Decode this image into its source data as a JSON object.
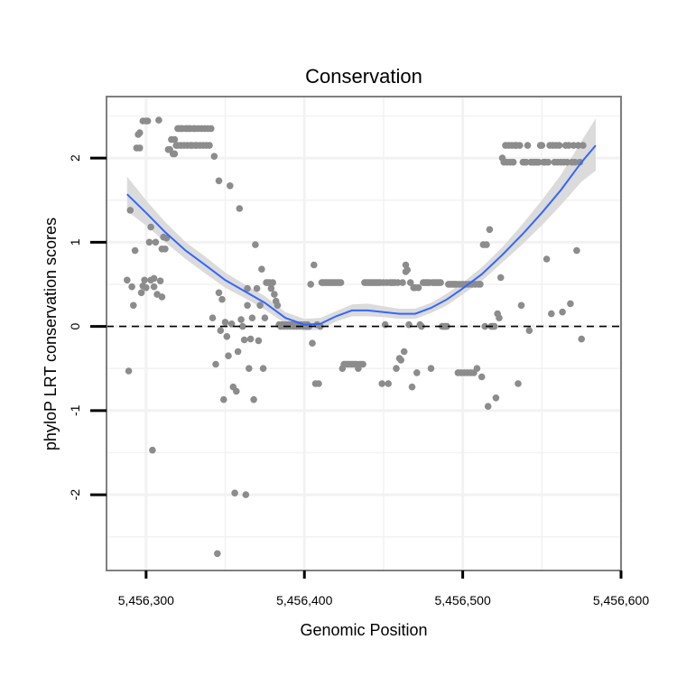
{
  "chart_data": {
    "type": "scatter",
    "title": "Conservation",
    "xlabel": "Genomic Position",
    "ylabel": "phyloP LRT conservation scores",
    "xlim": [
      5456275,
      5456600
    ],
    "ylim": [
      -2.9,
      2.73
    ],
    "x_ticks": [
      {
        "value": 5456300,
        "label": "5,456,300"
      },
      {
        "value": 5456400,
        "label": "5,456,400"
      },
      {
        "value": 5456500,
        "label": "5,456,500"
      },
      {
        "value": 5456600,
        "label": "5,456,600"
      }
    ],
    "y_ticks": [
      {
        "value": 2,
        "label": "2"
      },
      {
        "value": 1,
        "label": "1"
      },
      {
        "value": 0,
        "label": "0"
      },
      {
        "value": -1,
        "label": "-1"
      },
      {
        "value": -2,
        "label": "-2"
      }
    ],
    "reference_line": {
      "y": 0,
      "style": "dashed"
    },
    "colors": {
      "points": "#8c8c8c",
      "smooth": "#3366ff",
      "ribbon": "#d9d9d9",
      "grid": "#f2f2f2",
      "border": "#7f7f7f"
    },
    "points": [
      [
        5456288,
        0.55
      ],
      [
        5456289,
        -0.53
      ],
      [
        5456290,
        1.38
      ],
      [
        5456291,
        0.47
      ],
      [
        5456292,
        0.25
      ],
      [
        5456293,
        0.9
      ],
      [
        5456294,
        2.12
      ],
      [
        5456295,
        2.28
      ],
      [
        5456296,
        2.12
      ],
      [
        5456296,
        2.3
      ],
      [
        5456297,
        0.4
      ],
      [
        5456298,
        2.44
      ],
      [
        5456298,
        0.48
      ],
      [
        5456299,
        0.55
      ],
      [
        5456300,
        2.44
      ],
      [
        5456300,
        0.46
      ],
      [
        5456301,
        2.44
      ],
      [
        5456302,
        1.0
      ],
      [
        5456303,
        0.55
      ],
      [
        5456303,
        1.18
      ],
      [
        5456304,
        -1.47
      ],
      [
        5456305,
        0.47
      ],
      [
        5456305,
        0.57
      ],
      [
        5456306,
        1.0
      ],
      [
        5456307,
        0.38
      ],
      [
        5456308,
        2.45
      ],
      [
        5456309,
        0.54
      ],
      [
        5456310,
        0.92
      ],
      [
        5456310,
        0.35
      ],
      [
        5456311,
        1.06
      ],
      [
        5456312,
        0.92
      ],
      [
        5456313,
        1.05
      ],
      [
        5456314,
        2.1
      ],
      [
        5456315,
        2.1
      ],
      [
        5456316,
        2.22
      ],
      [
        5456317,
        2.05
      ],
      [
        5456318,
        2.22
      ],
      [
        5456318,
        2.05
      ],
      [
        5456319,
        2.15
      ],
      [
        5456320,
        2.15
      ],
      [
        5456320,
        2.35
      ],
      [
        5456321,
        2.35
      ],
      [
        5456322,
        2.35
      ],
      [
        5456322,
        2.15
      ],
      [
        5456323,
        2.35
      ],
      [
        5456324,
        2.15
      ],
      [
        5456325,
        2.35
      ],
      [
        5456326,
        2.35
      ],
      [
        5456326,
        2.15
      ],
      [
        5456327,
        2.35
      ],
      [
        5456328,
        2.35
      ],
      [
        5456328,
        2.15
      ],
      [
        5456329,
        2.15
      ],
      [
        5456330,
        2.35
      ],
      [
        5456331,
        2.35
      ],
      [
        5456331,
        2.15
      ],
      [
        5456332,
        2.15
      ],
      [
        5456333,
        2.35
      ],
      [
        5456334,
        2.15
      ],
      [
        5456335,
        2.35
      ],
      [
        5456336,
        2.15
      ],
      [
        5456337,
        2.35
      ],
      [
        5456338,
        2.15
      ],
      [
        5456339,
        2.35
      ],
      [
        5456340,
        2.15
      ],
      [
        5456341,
        2.35
      ],
      [
        5456342,
        0.1
      ],
      [
        5456343,
        2.02
      ],
      [
        5456344,
        -0.45
      ],
      [
        5456345,
        -2.7
      ],
      [
        5456346,
        0.4
      ],
      [
        5456346,
        1.73
      ],
      [
        5456347,
        -0.05
      ],
      [
        5456348,
        0.32
      ],
      [
        5456349,
        -0.87
      ],
      [
        5456350,
        0.05
      ],
      [
        5456351,
        -0.12
      ],
      [
        5456352,
        -0.35
      ],
      [
        5456353,
        1.67
      ],
      [
        5456354,
        0.03
      ],
      [
        5456355,
        -0.72
      ],
      [
        5456356,
        -1.98
      ],
      [
        5456357,
        -0.77
      ],
      [
        5456358,
        -0.3
      ],
      [
        5456359,
        1.4
      ],
      [
        5456360,
        0.08
      ],
      [
        5456361,
        0.0
      ],
      [
        5456362,
        -0.16
      ],
      [
        5456363,
        -2.0
      ],
      [
        5456364,
        0.25
      ],
      [
        5456364,
        0.45
      ],
      [
        5456365,
        -0.5
      ],
      [
        5456366,
        -0.15
      ],
      [
        5456367,
        0.1
      ],
      [
        5456368,
        -0.87
      ],
      [
        5456369,
        0.97
      ],
      [
        5456370,
        0.45
      ],
      [
        5456371,
        -0.17
      ],
      [
        5456372,
        0.25
      ],
      [
        5456373,
        0.68
      ],
      [
        5456374,
        -0.5
      ],
      [
        5456375,
        0.1
      ],
      [
        5456376,
        0.52
      ],
      [
        5456377,
        0.52
      ],
      [
        5456378,
        0.52
      ],
      [
        5456379,
        0.45
      ],
      [
        5456380,
        0.52
      ],
      [
        5456381,
        0.38
      ],
      [
        5456382,
        0.3
      ],
      [
        5456383,
        0.25
      ],
      [
        5456384,
        0.02
      ],
      [
        5456385,
        0.0
      ],
      [
        5456386,
        0.02
      ],
      [
        5456387,
        0.0
      ],
      [
        5456388,
        0.02
      ],
      [
        5456389,
        0.0
      ],
      [
        5456390,
        0.02
      ],
      [
        5456391,
        0.0
      ],
      [
        5456392,
        0.02
      ],
      [
        5456393,
        0.0
      ],
      [
        5456394,
        0.02
      ],
      [
        5456395,
        0.0
      ],
      [
        5456396,
        0.02
      ],
      [
        5456397,
        0.0
      ],
      [
        5456398,
        0.02
      ],
      [
        5456399,
        0.0
      ],
      [
        5456400,
        0.02
      ],
      [
        5456401,
        0.0
      ],
      [
        5456402,
        0.02
      ],
      [
        5456403,
        0.0
      ],
      [
        5456404,
        0.5
      ],
      [
        5456405,
        -0.2
      ],
      [
        5456406,
        0.73
      ],
      [
        5456407,
        -0.68
      ],
      [
        5456408,
        0.02
      ],
      [
        5456409,
        -0.68
      ],
      [
        5456410,
        0.0
      ],
      [
        5456411,
        0.52
      ],
      [
        5456412,
        0.52
      ],
      [
        5456413,
        0.52
      ],
      [
        5456414,
        0.52
      ],
      [
        5456415,
        0.52
      ],
      [
        5456416,
        0.52
      ],
      [
        5456417,
        0.52
      ],
      [
        5456418,
        0.52
      ],
      [
        5456419,
        0.52
      ],
      [
        5456420,
        0.52
      ],
      [
        5456421,
        0.52
      ],
      [
        5456422,
        0.52
      ],
      [
        5456423,
        0.52
      ],
      [
        5456424,
        -0.5
      ],
      [
        5456425,
        -0.45
      ],
      [
        5456426,
        -0.45
      ],
      [
        5456427,
        -0.45
      ],
      [
        5456428,
        -0.45
      ],
      [
        5456429,
        -0.45
      ],
      [
        5456430,
        -0.45
      ],
      [
        5456431,
        -0.45
      ],
      [
        5456432,
        -0.45
      ],
      [
        5456433,
        -0.45
      ],
      [
        5456434,
        -0.5
      ],
      [
        5456435,
        -0.45
      ],
      [
        5456436,
        -0.45
      ],
      [
        5456437,
        -0.45
      ],
      [
        5456438,
        0.52
      ],
      [
        5456439,
        0.52
      ],
      [
        5456440,
        0.52
      ],
      [
        5456441,
        0.52
      ],
      [
        5456442,
        0.52
      ],
      [
        5456443,
        0.52
      ],
      [
        5456444,
        0.52
      ],
      [
        5456445,
        0.52
      ],
      [
        5456446,
        0.52
      ],
      [
        5456447,
        0.52
      ],
      [
        5456448,
        0.52
      ],
      [
        5456449,
        -0.68
      ],
      [
        5456450,
        0.52
      ],
      [
        5456451,
        0.02
      ],
      [
        5456452,
        0.52
      ],
      [
        5456453,
        -0.68
      ],
      [
        5456454,
        0.52
      ],
      [
        5456455,
        0.52
      ],
      [
        5456456,
        0.52
      ],
      [
        5456457,
        0.52
      ],
      [
        5456458,
        -0.5
      ],
      [
        5456459,
        0.52
      ],
      [
        5456460,
        -0.38
      ],
      [
        5456461,
        -0.4
      ],
      [
        5456462,
        0.52
      ],
      [
        5456463,
        -0.3
      ],
      [
        5456464,
        0.73
      ],
      [
        5456464,
        0.65
      ],
      [
        5456465,
        0.67
      ],
      [
        5456466,
        0.02
      ],
      [
        5456467,
        0.52
      ],
      [
        5456468,
        -0.72
      ],
      [
        5456469,
        0.46
      ],
      [
        5456470,
        0.46
      ],
      [
        5456471,
        -0.55
      ],
      [
        5456472,
        0.46
      ],
      [
        5456473,
        0.02
      ],
      [
        5456474,
        0.0
      ],
      [
        5456475,
        0.52
      ],
      [
        5456476,
        0.52
      ],
      [
        5456477,
        0.52
      ],
      [
        5456478,
        0.52
      ],
      [
        5456479,
        0.52
      ],
      [
        5456480,
        -0.5
      ],
      [
        5456481,
        0.52
      ],
      [
        5456482,
        0.52
      ],
      [
        5456483,
        0.52
      ],
      [
        5456484,
        0.52
      ],
      [
        5456485,
        0.52
      ],
      [
        5456486,
        0.52
      ],
      [
        5456487,
        0.0
      ],
      [
        5456488,
        0.0
      ],
      [
        5456489,
        0.0
      ],
      [
        5456490,
        0.0
      ],
      [
        5456491,
        0.5
      ],
      [
        5456492,
        0.5
      ],
      [
        5456493,
        0.5
      ],
      [
        5456494,
        0.5
      ],
      [
        5456495,
        0.5
      ],
      [
        5456496,
        0.5
      ],
      [
        5456497,
        -0.55
      ],
      [
        5456498,
        0.5
      ],
      [
        5456499,
        -0.55
      ],
      [
        5456500,
        0.5
      ],
      [
        5456501,
        -0.55
      ],
      [
        5456502,
        0.5
      ],
      [
        5456503,
        -0.55
      ],
      [
        5456504,
        0.5
      ],
      [
        5456505,
        -0.55
      ],
      [
        5456506,
        0.5
      ],
      [
        5456507,
        -0.55
      ],
      [
        5456508,
        0.5
      ],
      [
        5456509,
        -0.5
      ],
      [
        5456510,
        0.5
      ],
      [
        5456511,
        0.5
      ],
      [
        5456512,
        -0.6
      ],
      [
        5456513,
        0.97
      ],
      [
        5456514,
        0.0
      ],
      [
        5456515,
        0.97
      ],
      [
        5456516,
        -0.95
      ],
      [
        5456517,
        1.15
      ],
      [
        5456518,
        0.0
      ],
      [
        5456519,
        0.0
      ],
      [
        5456520,
        0.0
      ],
      [
        5456521,
        -0.85
      ],
      [
        5456522,
        0.15
      ],
      [
        5456523,
        0.1
      ],
      [
        5456524,
        0.58
      ],
      [
        5456525,
        2.0
      ],
      [
        5456526,
        1.95
      ],
      [
        5456527,
        2.15
      ],
      [
        5456528,
        1.95
      ],
      [
        5456529,
        2.15
      ],
      [
        5456530,
        1.95
      ],
      [
        5456531,
        2.15
      ],
      [
        5456532,
        1.95
      ],
      [
        5456533,
        2.15
      ],
      [
        5456534,
        2.15
      ],
      [
        5456535,
        -0.68
      ],
      [
        5456536,
        2.15
      ],
      [
        5456537,
        0.25
      ],
      [
        5456538,
        1.95
      ],
      [
        5456539,
        1.95
      ],
      [
        5456540,
        1.95
      ],
      [
        5456541,
        2.15
      ],
      [
        5456542,
        -0.05
      ],
      [
        5456543,
        1.95
      ],
      [
        5456544,
        1.95
      ],
      [
        5456545,
        1.95
      ],
      [
        5456546,
        1.95
      ],
      [
        5456547,
        1.95
      ],
      [
        5456548,
        1.95
      ],
      [
        5456549,
        2.15
      ],
      [
        5456550,
        2.15
      ],
      [
        5456551,
        1.95
      ],
      [
        5456552,
        1.95
      ],
      [
        5456553,
        0.8
      ],
      [
        5456554,
        1.95
      ],
      [
        5456555,
        2.15
      ],
      [
        5456556,
        0.15
      ],
      [
        5456557,
        2.15
      ],
      [
        5456558,
        1.95
      ],
      [
        5456559,
        2.15
      ],
      [
        5456560,
        1.95
      ],
      [
        5456561,
        2.15
      ],
      [
        5456562,
        1.95
      ],
      [
        5456563,
        0.17
      ],
      [
        5456564,
        1.95
      ],
      [
        5456565,
        2.15
      ],
      [
        5456566,
        1.95
      ],
      [
        5456567,
        2.15
      ],
      [
        5456568,
        0.27
      ],
      [
        5456569,
        1.95
      ],
      [
        5456570,
        2.15
      ],
      [
        5456571,
        1.95
      ],
      [
        5456572,
        0.9
      ],
      [
        5456573,
        2.15
      ],
      [
        5456574,
        1.95
      ],
      [
        5456575,
        -0.15
      ],
      [
        5456576,
        2.15
      ]
    ],
    "smooth": {
      "x": [
        5456288,
        5456300,
        5456312,
        5456325,
        5456338,
        5456350,
        5456362,
        5456375,
        5456388,
        5456400,
        5456410,
        5456420,
        5456430,
        5456440,
        5456450,
        5456460,
        5456470,
        5456480,
        5456490,
        5456500,
        5456512,
        5456525,
        5456538,
        5456550,
        5456562,
        5456575,
        5456584
      ],
      "y": [
        1.57,
        1.35,
        1.12,
        0.9,
        0.72,
        0.55,
        0.42,
        0.28,
        0.1,
        0.02,
        0.03,
        0.12,
        0.19,
        0.19,
        0.17,
        0.15,
        0.15,
        0.22,
        0.32,
        0.45,
        0.62,
        0.85,
        1.1,
        1.35,
        1.62,
        1.95,
        2.15
      ],
      "lower": [
        1.37,
        1.2,
        1.0,
        0.8,
        0.62,
        0.46,
        0.34,
        0.2,
        0.03,
        -0.05,
        -0.04,
        0.06,
        0.12,
        0.12,
        0.11,
        0.09,
        0.09,
        0.16,
        0.25,
        0.38,
        0.54,
        0.76,
        0.98,
        1.2,
        1.44,
        1.72,
        1.85
      ],
      "upper": [
        1.78,
        1.5,
        1.24,
        1.0,
        0.82,
        0.64,
        0.5,
        0.36,
        0.17,
        0.09,
        0.1,
        0.18,
        0.26,
        0.27,
        0.24,
        0.21,
        0.21,
        0.28,
        0.39,
        0.52,
        0.7,
        0.94,
        1.22,
        1.5,
        1.8,
        2.2,
        2.47
      ]
    }
  }
}
